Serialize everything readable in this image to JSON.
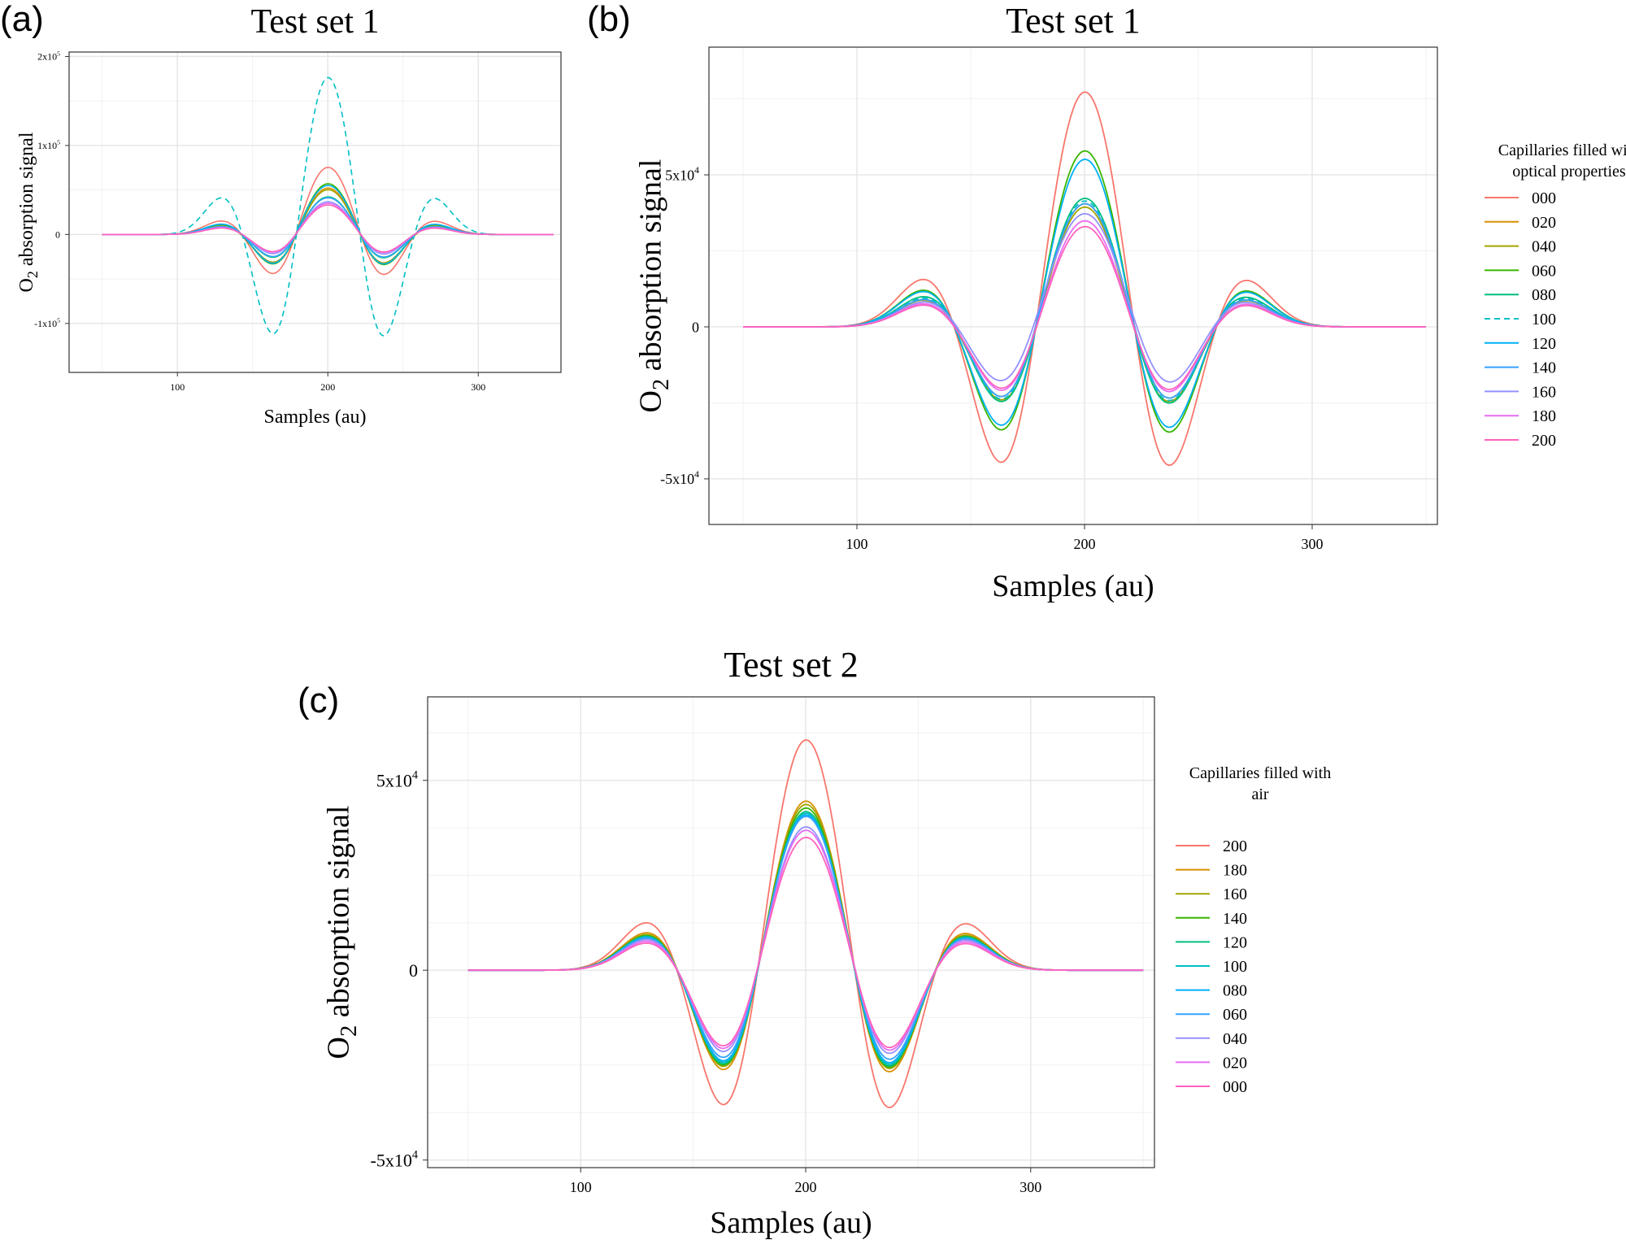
{
  "figure": {
    "panel_a": {
      "letter": "(a)"
    },
    "panel_b": {
      "letter": "(b)"
    },
    "panel_c": {
      "letter": "(c)"
    }
  },
  "chart_data": [
    {
      "id": "a",
      "type": "line",
      "title": "Test set 1",
      "xlabel": "Samples (au)",
      "ylabel_main": "O",
      "ylabel_sub": "2",
      "ylabel_rest": " absorption signal",
      "xlim": [
        28,
        355
      ],
      "ylim": [
        -155000,
        205000
      ],
      "xticks": [
        {
          "value": 100,
          "label": "100"
        },
        {
          "value": 200,
          "label": "200"
        },
        {
          "value": 300,
          "label": "300"
        }
      ],
      "yticks": [
        {
          "value": 200000,
          "mant": "2x10",
          "exp": "5"
        },
        {
          "value": 100000,
          "mant": "1x10",
          "exp": "5"
        },
        {
          "value": 0,
          "mant": "0",
          "exp": ""
        },
        {
          "value": -100000,
          "mant": "-1x10",
          "exp": "5"
        }
      ],
      "xgrid_minor": [
        50,
        150,
        250
      ],
      "ygrid_minor": [
        150000,
        50000,
        -50000
      ],
      "signal_shape": {
        "start": 50,
        "end": 350,
        "center": 200,
        "sigma": 18,
        "side_lobe_offset": 68,
        "side_lobe_sigma": 13
      },
      "series": [
        {
          "name": "000",
          "color": "#F8766D",
          "peak": 82000,
          "trough": -57000,
          "side": 17000,
          "dashed": false
        },
        {
          "name": "020",
          "color": "#D89000",
          "peak": 57000,
          "trough": -42000,
          "side": 12000,
          "dashed": false
        },
        {
          "name": "040",
          "color": "#A3A500",
          "peak": 55000,
          "trough": -40000,
          "side": 11000,
          "dashed": false
        },
        {
          "name": "060",
          "color": "#39B600",
          "peak": 62000,
          "trough": -43000,
          "side": 12500,
          "dashed": false
        },
        {
          "name": "080",
          "color": "#00BF7D",
          "peak": 46000,
          "trough": -33000,
          "side": 10000,
          "dashed": false
        },
        {
          "name": "100",
          "color": "#00BFC4",
          "peak": 193000,
          "trough": -143000,
          "side": 46000,
          "dashed": true
        },
        {
          "name": "120",
          "color": "#00B0F6",
          "peak": 60000,
          "trough": -42000,
          "side": 13000,
          "dashed": false
        },
        {
          "name": "140",
          "color": "#35A2FF",
          "peak": 45000,
          "trough": -32000,
          "side": 10000,
          "dashed": false
        },
        {
          "name": "160",
          "color": "#9590FF",
          "peak": 40000,
          "trough": -28000,
          "side": 9000,
          "dashed": false
        },
        {
          "name": "180",
          "color": "#E76BF3",
          "peak": 38000,
          "trough": -26000,
          "side": 8500,
          "dashed": false
        },
        {
          "name": "200",
          "color": "#FF62BC",
          "peak": 36000,
          "trough": -25000,
          "side": 8000,
          "dashed": false
        }
      ]
    },
    {
      "id": "b",
      "type": "line",
      "title": "Test set 1",
      "xlabel": "Samples (au)",
      "ylabel_main": "O",
      "ylabel_sub": "2",
      "ylabel_rest": " absorption signal",
      "xlim": [
        35,
        355
      ],
      "ylim": [
        -65000,
        92000
      ],
      "xticks": [
        {
          "value": 100,
          "label": "100"
        },
        {
          "value": 200,
          "label": "200"
        },
        {
          "value": 300,
          "label": "300"
        }
      ],
      "yticks": [
        {
          "value": 50000,
          "mant": "5x10",
          "exp": "4"
        },
        {
          "value": 0,
          "mant": "0",
          "exp": ""
        },
        {
          "value": -50000,
          "mant": "-5x10",
          "exp": "4"
        }
      ],
      "xgrid_minor": [
        50,
        150,
        250,
        350
      ],
      "ygrid_minor": [
        75000,
        25000,
        -25000
      ],
      "signal_shape": {
        "start": 50,
        "end": 350,
        "center": 200,
        "sigma": 18,
        "side_lobe_offset": 68,
        "side_lobe_sigma": 13
      },
      "legend": {
        "title_lines": [
          "Capillaries filled with",
          "optical properties"
        ],
        "position": "right"
      },
      "series": [
        {
          "name": "000",
          "color": "#F8766D",
          "peak": 84000,
          "trough": -58000,
          "side": 17500,
          "dashed": false
        },
        {
          "name": "020",
          "color": "#D89000",
          "peak": 44000,
          "trough": -30000,
          "side": 10000,
          "dashed": false
        },
        {
          "name": "040",
          "color": "#A3A500",
          "peak": 43000,
          "trough": -31000,
          "side": 9800,
          "dashed": false
        },
        {
          "name": "060",
          "color": "#39B600",
          "peak": 63000,
          "trough": -44000,
          "side": 13500,
          "dashed": false
        },
        {
          "name": "080",
          "color": "#00BF7D",
          "peak": 46000,
          "trough": -32000,
          "side": 11000,
          "dashed": false
        },
        {
          "name": "100",
          "color": "#00BFC4",
          "peak": 45000,
          "trough": -31000,
          "side": 10500,
          "dashed": true
        },
        {
          "name": "120",
          "color": "#00B0F6",
          "peak": 60000,
          "trough": -42000,
          "side": 13000,
          "dashed": false
        },
        {
          "name": "140",
          "color": "#35A2FF",
          "peak": 44000,
          "trough": -30000,
          "side": 10000,
          "dashed": false
        },
        {
          "name": "160",
          "color": "#9590FF",
          "peak": 40000,
          "trough": -24000,
          "side": 9000,
          "dashed": false
        },
        {
          "name": "180",
          "color": "#E76BF3",
          "peak": 38000,
          "trough": -27000,
          "side": 8500,
          "dashed": false
        },
        {
          "name": "200",
          "color": "#FF62BC",
          "peak": 36000,
          "trough": -26000,
          "side": 8000,
          "dashed": false
        }
      ]
    },
    {
      "id": "c",
      "type": "line",
      "title": "Test set 2",
      "xlabel": "Samples (au)",
      "ylabel_main": "O",
      "ylabel_sub": "2",
      "ylabel_rest": " absorption signal",
      "xlim": [
        32,
        355
      ],
      "ylim": [
        -52000,
        72000
      ],
      "xticks": [
        {
          "value": 100,
          "label": "100"
        },
        {
          "value": 200,
          "label": "200"
        },
        {
          "value": 300,
          "label": "300"
        }
      ],
      "yticks": [
        {
          "value": 50000,
          "mant": "5x10",
          "exp": "4"
        },
        {
          "value": 0,
          "mant": "0",
          "exp": ""
        },
        {
          "value": -50000,
          "mant": "-5x10",
          "exp": "4"
        }
      ],
      "xgrid_minor": [
        50,
        150,
        250,
        350
      ],
      "ygrid_minor": [
        62500,
        37500,
        25000,
        12500,
        -12500,
        -25000,
        -37500
      ],
      "signal_shape": {
        "start": 50,
        "end": 350,
        "center": 200,
        "sigma": 18,
        "side_lobe_offset": 68,
        "side_lobe_sigma": 13
      },
      "legend": {
        "title_lines": [
          "Capillaries filled with",
          "air"
        ],
        "position": "right"
      },
      "series": [
        {
          "name": "200",
          "color": "#F8766D",
          "peak": 66000,
          "trough": -46000,
          "side": 14000,
          "dashed": false
        },
        {
          "name": "180",
          "color": "#D89000",
          "peak": 48500,
          "trough": -34000,
          "side": 11000,
          "dashed": false
        },
        {
          "name": "160",
          "color": "#A3A500",
          "peak": 47500,
          "trough": -33000,
          "side": 10500,
          "dashed": false
        },
        {
          "name": "140",
          "color": "#39B600",
          "peak": 46500,
          "trough": -32500,
          "side": 10200,
          "dashed": false
        },
        {
          "name": "120",
          "color": "#00BF7D",
          "peak": 45500,
          "trough": -32000,
          "side": 10000,
          "dashed": false
        },
        {
          "name": "100",
          "color": "#00BFC4",
          "peak": 45000,
          "trough": -31500,
          "side": 9800,
          "dashed": false
        },
        {
          "name": "080",
          "color": "#00B0F6",
          "peak": 44500,
          "trough": -31000,
          "side": 9600,
          "dashed": false
        },
        {
          "name": "060",
          "color": "#35A2FF",
          "peak": 44000,
          "trough": -30000,
          "side": 9400,
          "dashed": false
        },
        {
          "name": "040",
          "color": "#9590FF",
          "peak": 41000,
          "trough": -28000,
          "side": 9000,
          "dashed": false
        },
        {
          "name": "020",
          "color": "#E76BF3",
          "peak": 40000,
          "trough": -27000,
          "side": 8500,
          "dashed": false
        },
        {
          "name": "000",
          "color": "#FF62BC",
          "peak": 38000,
          "trough": -26000,
          "side": 8000,
          "dashed": false
        }
      ]
    }
  ]
}
